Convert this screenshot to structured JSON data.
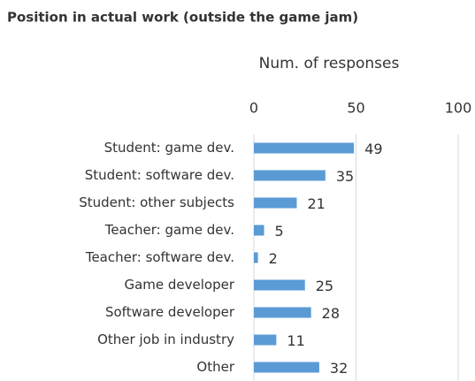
{
  "chart_data": {
    "type": "bar",
    "orientation": "horizontal",
    "title": "Position in actual work (outside the game jam)",
    "x_label": "Num. of responses",
    "categories": [
      "Student: game dev.",
      "Student: software dev.",
      "Student: other subjects",
      "Teacher: game dev.",
      "Teacher: software dev.",
      "Game developer",
      "Software developer",
      "Other job in industry",
      "Other"
    ],
    "values": [
      49,
      35,
      21,
      5,
      2,
      25,
      28,
      11,
      32
    ],
    "color": "#5b9bd5",
    "xlim": [
      0,
      100
    ],
    "xticks": [
      0,
      50,
      100
    ],
    "grid": true
  }
}
